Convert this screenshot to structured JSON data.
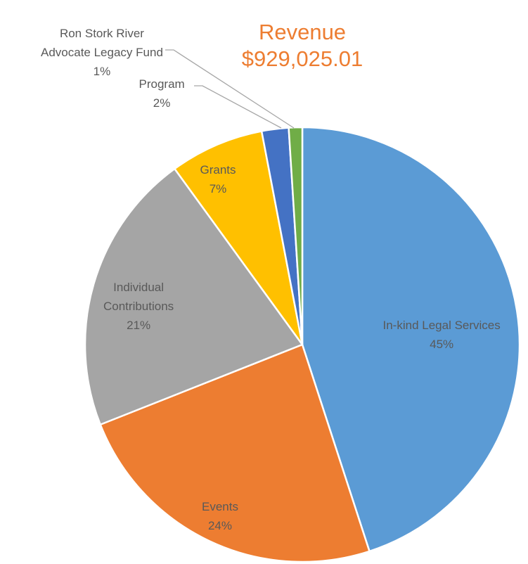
{
  "chart_data": {
    "type": "pie",
    "title": "Revenue",
    "subtitle": "$929,025.01",
    "start_angle_deg": 0,
    "direction": "clockwise",
    "slices": [
      {
        "name": "In-kind Legal Services",
        "lines": [
          "In-kind Legal Services"
        ],
        "value": 45,
        "value_label": "45%",
        "color": "#5B9BD5"
      },
      {
        "name": "Events",
        "lines": [
          "Events"
        ],
        "value": 24,
        "value_label": "24%",
        "color": "#ED7D31"
      },
      {
        "name": "Individual Contributions",
        "lines": [
          "Individual",
          "Contributions"
        ],
        "value": 21,
        "value_label": "21%",
        "color": "#A5A5A5"
      },
      {
        "name": "Grants",
        "lines": [
          "Grants"
        ],
        "value": 7,
        "value_label": "7%",
        "color": "#FFC000"
      },
      {
        "name": "Program",
        "lines": [
          "Program"
        ],
        "value": 2,
        "value_label": "2%",
        "color": "#4472C4"
      },
      {
        "name": "Ron Stork River Advocate Legacy Fund",
        "lines": [
          "Ron Stork River",
          "Advocate Legacy Fund"
        ],
        "value": 1,
        "value_label": "1%",
        "color": "#70AD47"
      }
    ]
  }
}
